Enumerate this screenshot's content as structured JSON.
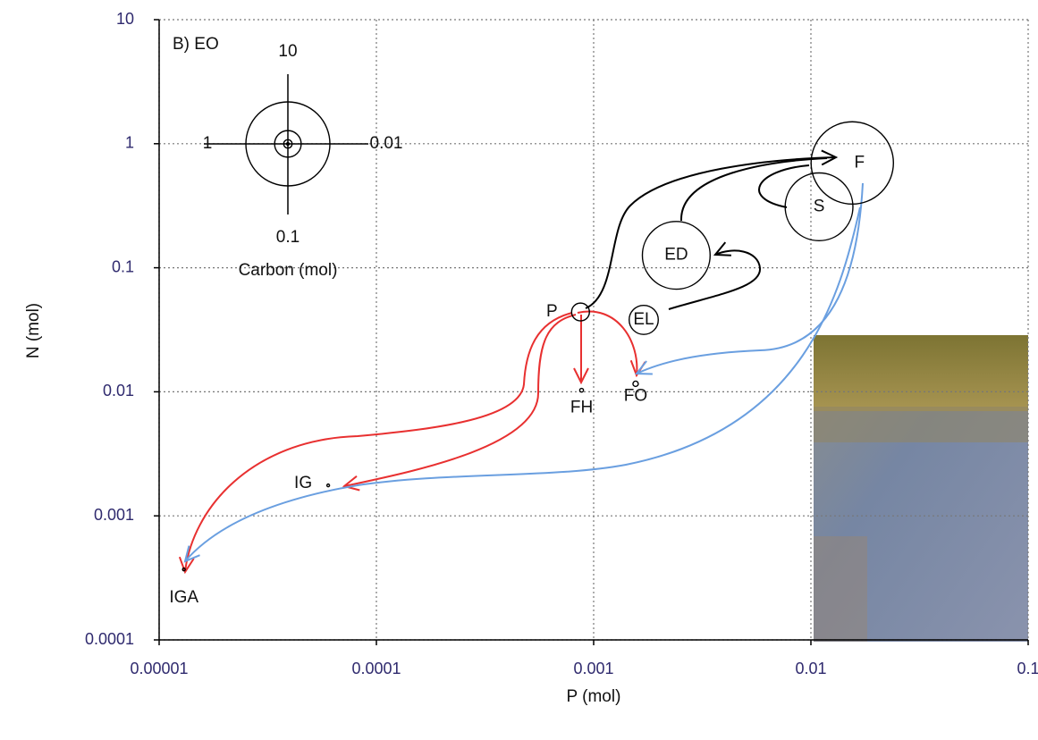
{
  "chart_data": {
    "type": "bubble",
    "panel_label": "B) EO",
    "x_label": "P (mol)",
    "y_label": "N (mol)",
    "labels": [
      "P",
      "FH",
      "FO",
      "EL",
      "ED",
      "S",
      "F",
      "IG",
      "IGA"
    ],
    "x": [
      0.00087,
      0.00088,
      0.00156,
      0.0017,
      0.0024,
      0.0109,
      0.0155,
      6e-05,
      1.3e-05
    ],
    "y": [
      0.044,
      0.0103,
      0.0116,
      0.038,
      0.126,
      0.31,
      0.7,
      0.00176,
      0.00037
    ],
    "sizes": [
      0.45,
      0.02,
      0.04,
      1.2,
      6.5,
      6.5,
      9.6,
      0.01,
      0.005
    ],
    "color": "#000000",
    "xlim": [
      1e-05,
      0.1
    ],
    "ylim": [
      0.0001,
      10
    ],
    "xticks": [
      1e-05,
      0.0001,
      0.001,
      0.01,
      0.1
    ],
    "yticks": [
      0.0001,
      0.001,
      0.01,
      0.1,
      1,
      10
    ],
    "log_x": true,
    "log_y": true,
    "grid": true,
    "size_legend": {
      "title": "Carbon (mol)",
      "values": [
        10,
        1,
        0.1,
        0.01
      ]
    }
  }
}
